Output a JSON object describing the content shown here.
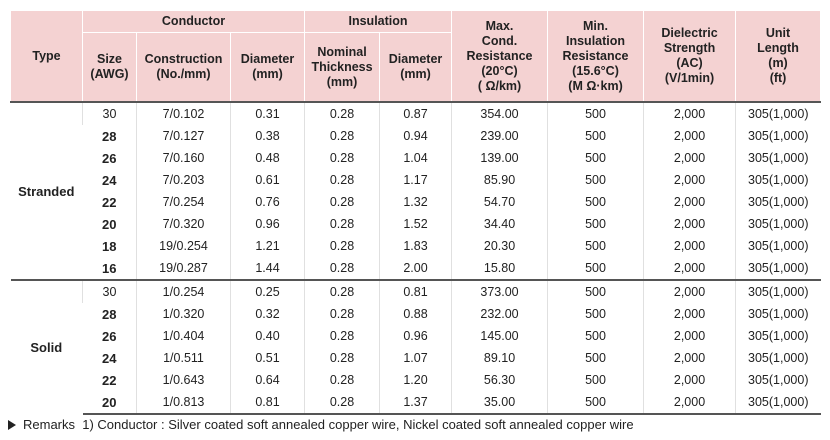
{
  "headers": {
    "type": "Type",
    "conductor": "Conductor",
    "insulation": "Insulation",
    "size": [
      "Size",
      "(AWG)"
    ],
    "construction": [
      "Construction",
      "(No./mm)"
    ],
    "cond_diameter": [
      "Diameter",
      "(mm)"
    ],
    "nominal_thickness": [
      "Nominal",
      "Thickness",
      "(mm)"
    ],
    "ins_diameter": [
      "Diameter",
      "(mm)"
    ],
    "max_resistance": [
      "Max.",
      "Cond.",
      "Resistance",
      "(20°C)",
      "( Ω/km)"
    ],
    "min_insulation": [
      "Min.",
      "Insulation",
      "Resistance",
      "(15.6°C)",
      "(M Ω·km)"
    ],
    "dielectric": [
      "Dielectric",
      "Strength",
      "(AC)",
      "(V/1min)"
    ],
    "unit_length": [
      "Unit",
      "Length",
      "(m)",
      "(ft)"
    ]
  },
  "groups": [
    {
      "type": "Stranded",
      "rows": [
        [
          "30",
          "7/0.102",
          "0.31",
          "0.28",
          "0.87",
          "354.00",
          "500",
          "2,000",
          "305(1,000)"
        ],
        [
          "28",
          "7/0.127",
          "0.38",
          "0.28",
          "0.94",
          "239.00",
          "500",
          "2,000",
          "305(1,000)"
        ],
        [
          "26",
          "7/0.160",
          "0.48",
          "0.28",
          "1.04",
          "139.00",
          "500",
          "2,000",
          "305(1,000)"
        ],
        [
          "24",
          "7/0.203",
          "0.61",
          "0.28",
          "1.17",
          "85.90",
          "500",
          "2,000",
          "305(1,000)"
        ],
        [
          "22",
          "7/0.254",
          "0.76",
          "0.28",
          "1.32",
          "54.70",
          "500",
          "2,000",
          "305(1,000)"
        ],
        [
          "20",
          "7/0.320",
          "0.96",
          "0.28",
          "1.52",
          "34.40",
          "500",
          "2,000",
          "305(1,000)"
        ],
        [
          "18",
          "19/0.254",
          "1.21",
          "0.28",
          "1.83",
          "20.30",
          "500",
          "2,000",
          "305(1,000)"
        ],
        [
          "16",
          "19/0.287",
          "1.44",
          "0.28",
          "2.00",
          "15.80",
          "500",
          "2,000",
          "305(1,000)"
        ]
      ]
    },
    {
      "type": "Solid",
      "rows": [
        [
          "30",
          "1/0.254",
          "0.25",
          "0.28",
          "0.81",
          "373.00",
          "500",
          "2,000",
          "305(1,000)"
        ],
        [
          "28",
          "1/0.320",
          "0.32",
          "0.28",
          "0.88",
          "232.00",
          "500",
          "2,000",
          "305(1,000)"
        ],
        [
          "26",
          "1/0.404",
          "0.40",
          "0.28",
          "0.96",
          "145.00",
          "500",
          "2,000",
          "305(1,000)"
        ],
        [
          "24",
          "1/0.511",
          "0.51",
          "0.28",
          "1.07",
          "89.10",
          "500",
          "2,000",
          "305(1,000)"
        ],
        [
          "22",
          "1/0.643",
          "0.64",
          "0.28",
          "1.20",
          "56.30",
          "500",
          "2,000",
          "305(1,000)"
        ],
        [
          "20",
          "1/0.813",
          "0.81",
          "0.28",
          "1.37",
          "35.00",
          "500",
          "2,000",
          "305(1,000)"
        ]
      ]
    }
  ],
  "remarks": {
    "icon": "triangle-right-icon",
    "text": "Remarks  1) Conductor : Silver coated soft annealed copper wire, Nickel coated soft annealed copper wire"
  }
}
